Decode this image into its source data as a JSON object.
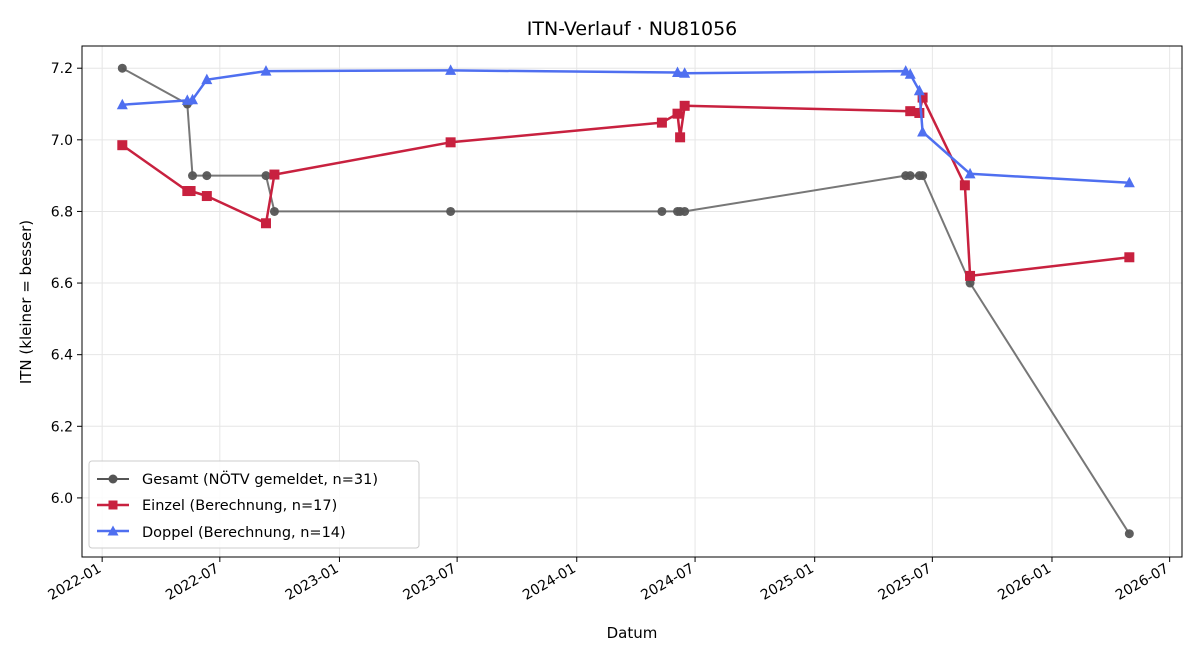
{
  "chart_data": {
    "type": "line",
    "title": "ITN-Verlauf · NU81056",
    "xlabel": "Datum",
    "ylabel": "ITN  (kleiner = besser)",
    "x_range": [
      "2021-12-01",
      "2026-07-20"
    ],
    "ylim": [
      5.835,
      7.262
    ],
    "xticks": [
      "2022-01",
      "2022-07",
      "2023-01",
      "2023-07",
      "2024-01",
      "2024-07",
      "2025-01",
      "2025-07",
      "2026-01",
      "2026-07"
    ],
    "yticks": [
      "6.0",
      "6.2",
      "6.4",
      "6.6",
      "6.8",
      "7.0",
      "7.2"
    ],
    "grid": true,
    "legend_position": "lower-left",
    "series": [
      {
        "name": "Gesamt (NÖTV gemeldet, n=31)",
        "color": "#555555",
        "marker": "circle",
        "x": [
          "2022-02-01",
          "2022-05-12",
          "2022-05-20",
          "2022-06-11",
          "2022-09-10",
          "2022-09-23",
          "2023-06-21",
          "2024-05-11",
          "2024-06-04",
          "2024-06-08",
          "2024-06-15",
          "2025-05-21",
          "2025-05-28",
          "2025-06-11",
          "2025-06-16",
          "2025-08-28",
          "2026-04-30"
        ],
        "values": [
          7.2,
          7.1,
          6.9,
          6.9,
          6.9,
          6.8,
          6.8,
          6.8,
          6.8,
          6.8,
          6.8,
          6.9,
          6.9,
          6.9,
          6.9,
          6.6,
          5.9
        ]
      },
      {
        "name": "Einzel (Berechnung, n=17)",
        "color": "#c8213f",
        "marker": "square",
        "x": [
          "2022-02-01",
          "2022-05-12",
          "2022-05-17",
          "2022-06-11",
          "2022-09-10",
          "2022-09-23",
          "2023-06-21",
          "2024-05-11",
          "2024-06-04",
          "2024-06-08",
          "2024-06-15",
          "2025-05-28",
          "2025-06-11",
          "2025-06-16",
          "2025-08-20",
          "2025-08-28",
          "2026-04-30"
        ],
        "values": [
          6.985,
          6.857,
          6.857,
          6.843,
          6.767,
          6.903,
          6.993,
          7.048,
          7.073,
          7.007,
          7.095,
          7.08,
          7.075,
          7.118,
          6.873,
          6.62,
          6.672
        ]
      },
      {
        "name": "Doppel (Berechnung, n=14)",
        "color": "#4f6ff0",
        "marker": "triangle",
        "x": [
          "2022-02-01",
          "2022-05-12",
          "2022-05-20",
          "2022-06-11",
          "2022-09-10",
          "2023-06-21",
          "2024-06-04",
          "2024-06-15",
          "2025-05-21",
          "2025-05-28",
          "2025-06-11",
          "2025-06-16",
          "2025-08-28",
          "2026-04-30"
        ],
        "values": [
          7.098,
          7.11,
          7.112,
          7.168,
          7.192,
          7.194,
          7.188,
          7.186,
          7.192,
          7.183,
          7.137,
          7.022,
          6.905,
          6.88
        ]
      }
    ]
  }
}
